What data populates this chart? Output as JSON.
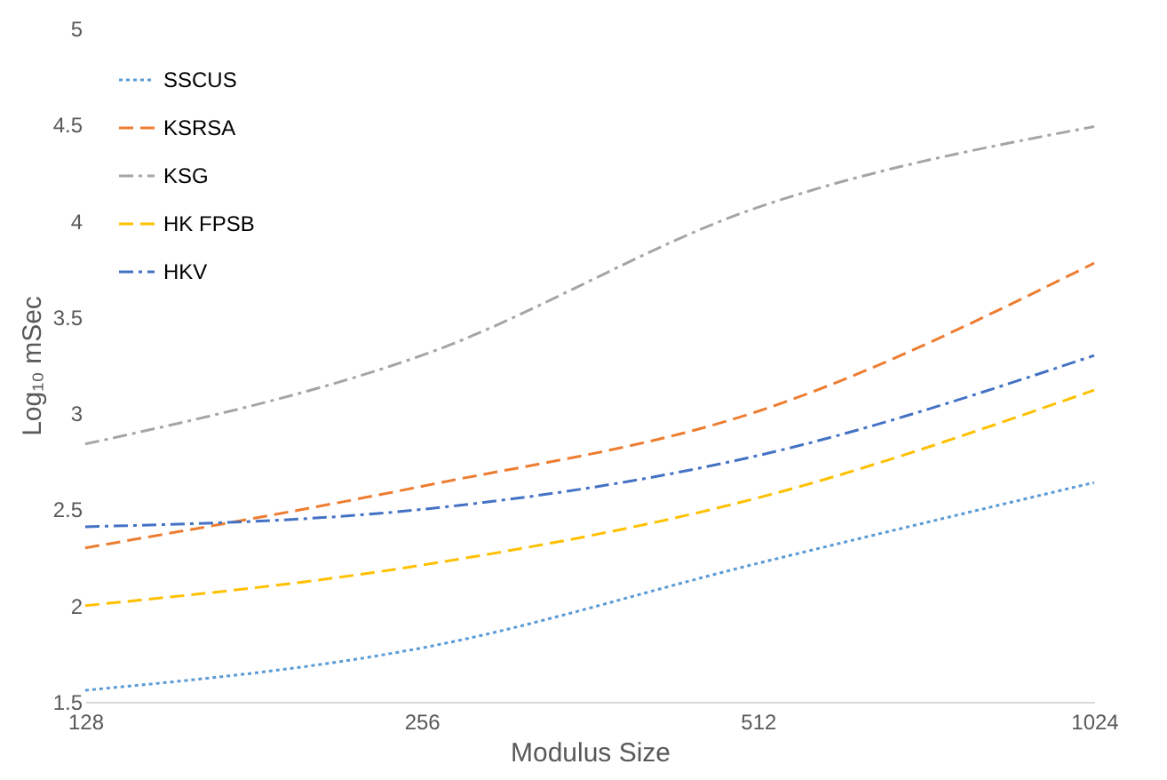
{
  "chart_data": {
    "type": "line",
    "xlabel": "Modulus Size",
    "ylabel": "Log₁₀ mSec",
    "categories": [
      "128",
      "256",
      "512",
      "1024"
    ],
    "series": [
      {
        "name": "SSCUS",
        "color": "#5b9bd5",
        "line_style": "dotted",
        "values": [
          1.56,
          1.78,
          2.22,
          2.64
        ]
      },
      {
        "name": "KSRSA",
        "color": "#ed7d31",
        "line_style": "dashed",
        "values": [
          2.3,
          2.62,
          3.01,
          3.78
        ]
      },
      {
        "name": "KSG",
        "color": "#a5a5a5",
        "line_style": "dashdot",
        "values": [
          2.84,
          3.3,
          4.07,
          4.49
        ]
      },
      {
        "name": "HK FPSB",
        "color": "#ffc000",
        "line_style": "dashed",
        "values": [
          2.0,
          2.21,
          2.56,
          3.12
        ]
      },
      {
        "name": "HKV",
        "color": "#4472c4",
        "line_style": "dashdot",
        "values": [
          2.41,
          2.5,
          2.78,
          3.3
        ]
      }
    ],
    "ylim": [
      1.5,
      5
    ],
    "yticks": [
      1.5,
      2,
      2.5,
      3,
      3.5,
      4,
      4.5,
      5
    ],
    "grid": false,
    "legend": "top left",
    "marker": "none"
  }
}
